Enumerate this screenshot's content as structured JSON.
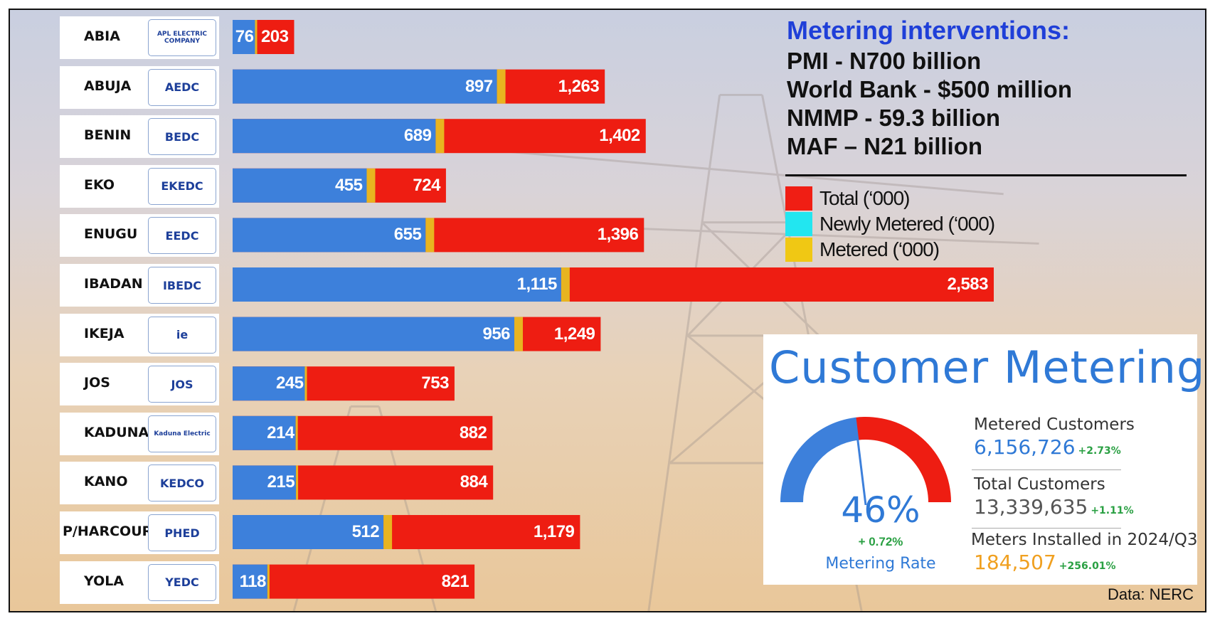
{
  "interventions": {
    "title": "Metering interventions:",
    "items": [
      "PMI - N700 billion",
      "World Bank - $500 million",
      "NMMP - 59.3 billion",
      "MAF – N21 billion"
    ]
  },
  "legend": [
    {
      "label": "Total (‘000)",
      "color": "#f01e14"
    },
    {
      "label": "Newly Metered (‘000)",
      "color": "#22e6f0"
    },
    {
      "label": "Metered (‘000)",
      "color": "#f0c814"
    }
  ],
  "colors": {
    "metered_bar": "#3d80db",
    "total_bar": "#ee1d12",
    "separator": "#e8b420",
    "accent_blue": "#2f79d6",
    "positive_green": "#2aa043",
    "orange": "#f0a020"
  },
  "chart_data": {
    "type": "bar",
    "orientation": "horizontal",
    "categories": [
      "ABIA",
      "ABUJA",
      "BENIN",
      "EKO",
      "ENUGU",
      "IBADAN",
      "IKEJA",
      "JOS",
      "KADUNA",
      "KANO",
      "P/HARCOURT",
      "YOLA"
    ],
    "series": [
      {
        "name": "Metered (‘000)",
        "values": [
          76,
          897,
          689,
          455,
          655,
          1115,
          956,
          245,
          214,
          215,
          512,
          118
        ]
      },
      {
        "name": "Total (‘000)",
        "values": [
          203,
          1263,
          1402,
          724,
          1396,
          2583,
          1249,
          753,
          882,
          884,
          1179,
          821
        ]
      }
    ],
    "value_labels": {
      "metered": [
        "76",
        "897",
        "689",
        "455",
        "655",
        "1,115",
        "956",
        "245",
        "214",
        "215",
        "512",
        "118"
      ],
      "total": [
        "203",
        "1,263",
        "1,402",
        "724",
        "1,396",
        "2,583",
        "1,249",
        "753",
        "882",
        "884",
        "1,179",
        "821"
      ]
    },
    "logos": [
      "APL ELECTRIC COMPANY",
      "AEDC",
      "BEDC",
      "EKEDC",
      "EEDC",
      "IBEDC",
      "ie",
      "JOS",
      "Kaduna Electric",
      "KEDCO",
      "PHED",
      "YEDC"
    ]
  },
  "metering": {
    "title": "Customer Metering",
    "rate": "46%",
    "rate_fraction": 0.46,
    "rate_change": "+ 0.72%",
    "rate_label": "Metering Rate",
    "metered_label": "Metered Customers",
    "metered_value": "6,156,726",
    "metered_change": "+2.73%",
    "total_label": "Total Customers",
    "total_value": "13,339,635",
    "total_change": "+1.11%",
    "installed_label": "Meters Installed in 2024/Q3",
    "installed_value": "184,507",
    "installed_change": "+256.01%"
  },
  "source": "Data: NERC"
}
